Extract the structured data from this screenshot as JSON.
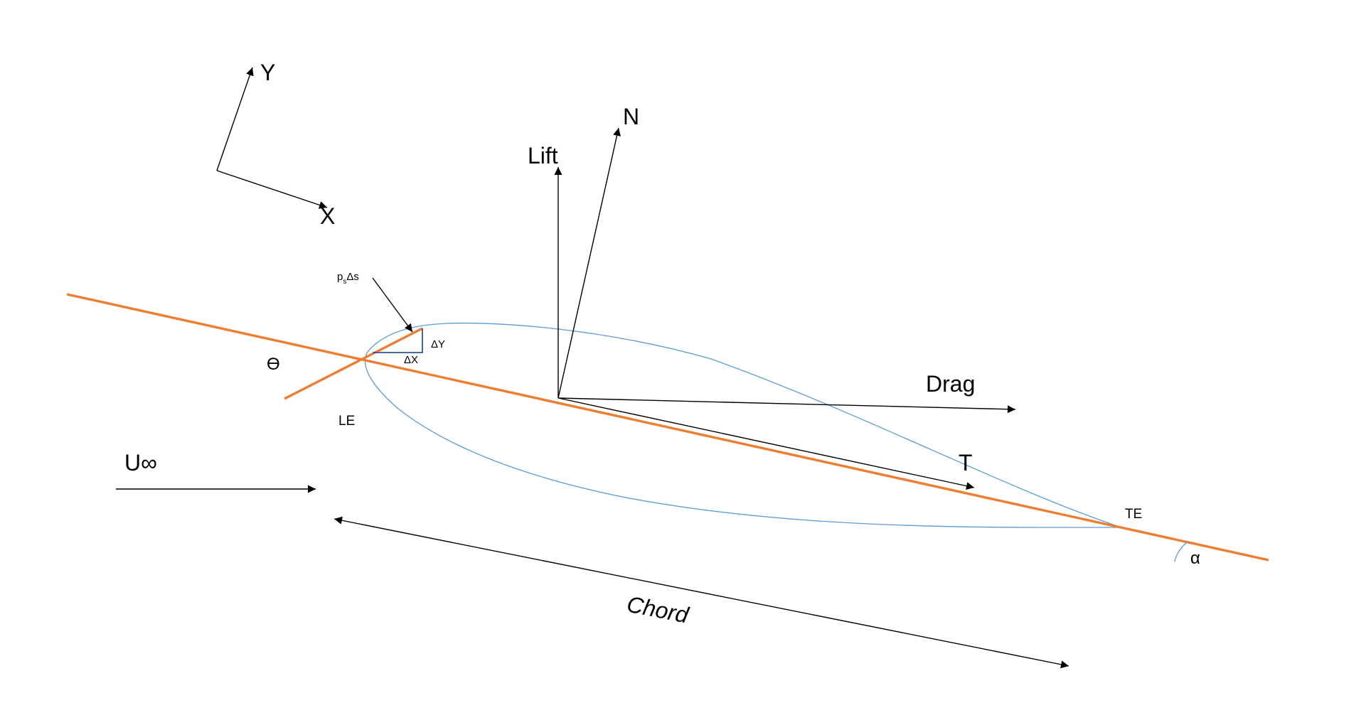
{
  "colors": {
    "chord_line": "#ED7D31",
    "airfoil": "#5B9BD5",
    "triangle": "#2F5597",
    "ink": "#000000"
  },
  "labels": {
    "y_axis": "Y",
    "x_axis": "X",
    "normal": "N",
    "lift": "Lift",
    "pressure_main": "p",
    "pressure_sub": "s",
    "pressure_tail": "Δs",
    "delta_y": "ΔY",
    "delta_x": "ΔX",
    "theta": "ϴ",
    "drag": "Drag",
    "leading_edge": "LE",
    "tangent": "T",
    "freestream": "U∞",
    "trailing_edge": "TE",
    "alpha": "α",
    "chord": "Chord"
  }
}
